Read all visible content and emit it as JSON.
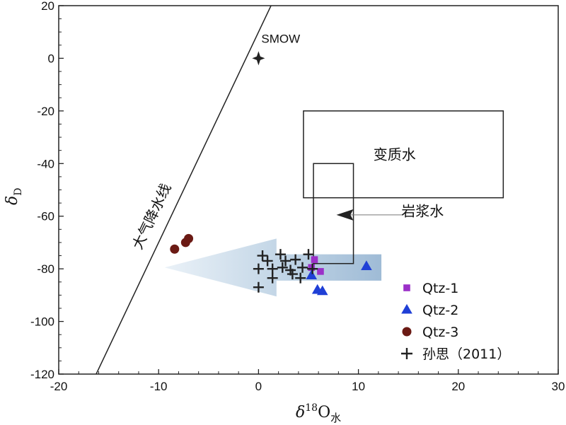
{
  "chart_data": {
    "type": "scatter",
    "xlabel": {
      "prefix": "δ",
      "sup": "18",
      "main": "O",
      "sub": "水"
    },
    "ylabel": {
      "main": "δ",
      "sub": "D"
    },
    "xlim": [
      -20,
      30
    ],
    "ylim": [
      -120,
      20
    ],
    "x_ticks": [
      -20,
      -10,
      0,
      10,
      20,
      30
    ],
    "y_ticks": [
      20,
      0,
      -20,
      -40,
      -60,
      -80,
      -100,
      -120
    ],
    "x_tick_labels": [
      "-20",
      "-10",
      "0",
      "10",
      "20",
      "30"
    ],
    "y_tick_labels": [
      "20",
      "0",
      "-20",
      "-40",
      "-60",
      "-80",
      "-100",
      "-120"
    ],
    "meteoric_line": {
      "label": "大气降水线",
      "slope": 8,
      "intercept": 10
    },
    "smow": {
      "label": "SMOW",
      "x": 0,
      "y": 0
    },
    "metamorphic_box": {
      "label": "变质水",
      "x": [
        4.5,
        24.5
      ],
      "y": [
        -53,
        -20
      ]
    },
    "magmatic_box": {
      "label": "岩浆水",
      "x": [
        5.5,
        9.5
      ],
      "y": [
        -78,
        -40
      ]
    },
    "arrow_band": {
      "tip_x": -9.4,
      "tail_x": 12.3,
      "y_center": -79.5,
      "y_half_height": 5
    },
    "series": [
      {
        "name": "Qtz-1",
        "marker": "square",
        "color": "#9b30c8",
        "points": [
          [
            5.3,
            -79.5
          ],
          [
            5.6,
            -76.5
          ],
          [
            6.2,
            -81
          ]
        ]
      },
      {
        "name": "Qtz-2",
        "marker": "triangle",
        "color": "#1f3fd6",
        "points": [
          [
            5.3,
            -82.5
          ],
          [
            5.9,
            -88
          ],
          [
            6.4,
            -88.5
          ],
          [
            10.8,
            -79
          ]
        ]
      },
      {
        "name": "Qtz-3",
        "marker": "circle",
        "color": "#6b1a14",
        "points": [
          [
            -8.4,
            -72.5
          ],
          [
            -7.3,
            -70
          ],
          [
            -7.0,
            -68.5
          ]
        ]
      },
      {
        "name": "孙思（2011）",
        "marker": "plus",
        "color": "#222222",
        "points": [
          [
            0.4,
            -75
          ],
          [
            0.9,
            -77
          ],
          [
            2.2,
            -74.5
          ],
          [
            2.7,
            -77
          ],
          [
            3.7,
            -76.5
          ],
          [
            5.0,
            -74.5
          ],
          [
            0.0,
            -80
          ],
          [
            1.4,
            -80
          ],
          [
            2.4,
            -79.5
          ],
          [
            3.2,
            -80.5
          ],
          [
            4.4,
            -79.5
          ],
          [
            5.4,
            -80
          ],
          [
            1.4,
            -83.5
          ],
          [
            3.4,
            -82
          ],
          [
            4.2,
            -83.5
          ],
          [
            0.0,
            -87
          ]
        ]
      }
    ]
  }
}
